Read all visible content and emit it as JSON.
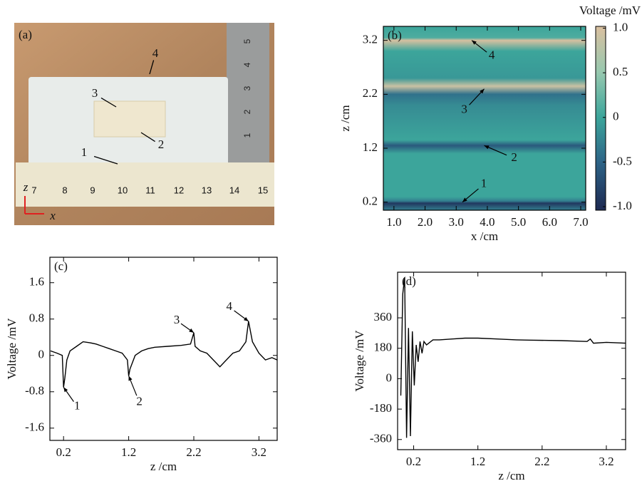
{
  "photo": {
    "label": "(a)",
    "ruler_numbers": [
      "7",
      "8",
      "9",
      "10",
      "11",
      "12",
      "13",
      "14",
      "15"
    ],
    "vertical_ruler_numbers": [
      "1",
      "2",
      "3",
      "4",
      "5"
    ],
    "markers": [
      "1",
      "2",
      "3",
      "4"
    ],
    "axes": [
      "z",
      "x"
    ]
  },
  "chart_data": [
    {
      "type": "heatmap",
      "label": "(b)",
      "xlabel": "x /cm",
      "ylabel": "z /cm",
      "colorbar_title": "Voltage /mV",
      "xlim": [
        0.66,
        7.16
      ],
      "ylim": [
        0.05,
        3.46
      ],
      "xticks": [
        {
          "value": 1,
          "label": "1.0"
        },
        {
          "value": 2,
          "label": "2.0"
        },
        {
          "value": 3,
          "label": "3.0"
        },
        {
          "value": 4,
          "label": "4.0"
        },
        {
          "value": 5,
          "label": "5.0"
        },
        {
          "value": 6,
          "label": "6.0"
        },
        {
          "value": 7,
          "label": "7.0"
        }
      ],
      "yticks": [
        0.2,
        1.2,
        2.2,
        3.2
      ],
      "clim": [
        -1.04,
        1.02
      ],
      "cticks": [
        {
          "value": 1,
          "label": "1.0"
        },
        0.5,
        0,
        -0.5,
        {
          "value": -1,
          "label": "-1.0"
        }
      ],
      "z": [
        0.05,
        0.18,
        0.22,
        0.3,
        1.1,
        1.25,
        1.35,
        2.0,
        2.2,
        2.35,
        2.5,
        3.0,
        3.2,
        3.25,
        3.46
      ],
      "values": [
        -0.3,
        -0.9,
        -0.3,
        0,
        0,
        -0.6,
        0,
        -0.2,
        -0.4,
        0.9,
        -0.1,
        0,
        1.0,
        0.1,
        0
      ],
      "annotations": [
        {
          "text": "1",
          "x": 3.2,
          "y": 0.2
        },
        {
          "text": "2",
          "x": 3.9,
          "y": 1.25
        },
        {
          "text": "3",
          "x": 3.9,
          "y": 2.3
        },
        {
          "text": "4",
          "x": 3.5,
          "y": 3.2
        }
      ]
    },
    {
      "type": "line",
      "label": "(c)",
      "xlabel": "z /cm",
      "ylabel": "Voltage /mV",
      "color": "#000000",
      "xlim": [
        -0.01,
        3.48
      ],
      "ylim": [
        -1.87,
        2.16
      ],
      "xticks": [
        0.2,
        1.2,
        2.2,
        3.2
      ],
      "yticks": [
        -1.6,
        -0.8,
        0,
        0.8,
        1.6
      ],
      "x": [
        0,
        0.1,
        0.18,
        0.2,
        0.22,
        0.25,
        0.3,
        0.4,
        0.5,
        0.6,
        0.7,
        0.8,
        0.9,
        1.0,
        1.1,
        1.18,
        1.2,
        1.22,
        1.3,
        1.4,
        1.5,
        1.6,
        1.8,
        2.0,
        2.15,
        2.2,
        2.22,
        2.3,
        2.4,
        2.5,
        2.6,
        2.7,
        2.8,
        2.9,
        3.0,
        3.04,
        3.1,
        3.2,
        3.3,
        3.4,
        3.48
      ],
      "values": [
        0.1,
        0.05,
        0,
        -0.7,
        -0.5,
        -0.1,
        0.1,
        0.2,
        0.3,
        0.28,
        0.25,
        0.2,
        0.15,
        0.1,
        0.05,
        -0.1,
        -0.45,
        -0.3,
        0,
        0.1,
        0.15,
        0.18,
        0.2,
        0.22,
        0.25,
        0.5,
        0.2,
        0.1,
        0.05,
        -0.1,
        -0.25,
        -0.1,
        0.05,
        0.1,
        0.3,
        0.75,
        0.3,
        0.05,
        -0.1,
        -0.05,
        -0.1
      ],
      "annotations": [
        {
          "text": "1",
          "x": 0.2,
          "y": -0.7
        },
        {
          "text": "2",
          "x": 1.2,
          "y": -0.45
        },
        {
          "text": "3",
          "x": 2.2,
          "y": 0.5
        },
        {
          "text": "4",
          "x": 3.04,
          "y": 0.75
        }
      ]
    },
    {
      "type": "line",
      "label": "(d)",
      "xlabel": "z /cm",
      "ylabel": "Voltage /mV",
      "color": "#000000",
      "xlim": [
        -0.05,
        3.5
      ],
      "ylim": [
        -420,
        630
      ],
      "xticks": [
        0.2,
        1.2,
        2.2,
        3.2
      ],
      "yticks": [
        -360,
        -180,
        0,
        180,
        360
      ],
      "x": [
        0,
        0.03,
        0.06,
        0.09,
        0.12,
        0.15,
        0.18,
        0.21,
        0.24,
        0.27,
        0.3,
        0.33,
        0.36,
        0.4,
        0.5,
        0.6,
        0.8,
        1.0,
        1.2,
        1.5,
        1.8,
        2.0,
        2.5,
        2.9,
        2.95,
        3.0,
        3.2,
        3.5
      ],
      "values": [
        -100,
        500,
        600,
        -350,
        300,
        -340,
        280,
        -40,
        200,
        100,
        220,
        150,
        220,
        200,
        230,
        230,
        235,
        240,
        240,
        235,
        230,
        228,
        225,
        220,
        235,
        210,
        215,
        210
      ]
    }
  ]
}
